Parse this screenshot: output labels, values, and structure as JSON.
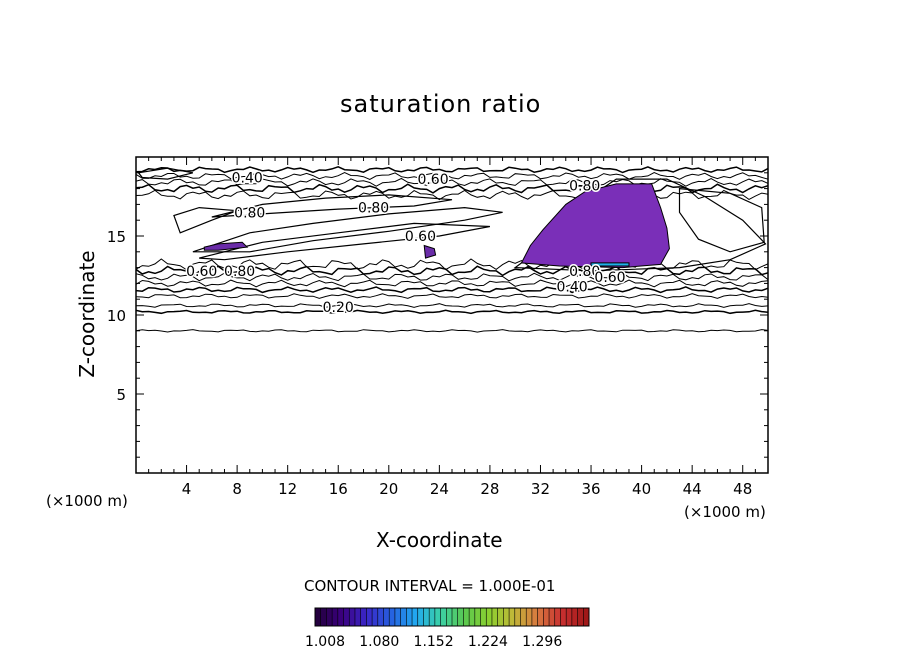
{
  "chart_data": {
    "type": "contour",
    "title": "saturation ratio",
    "xlabel": "X-coordinate",
    "ylabel": "Z-coordinate",
    "x_unit": "(×1000 m)",
    "y_unit": "(×1000 m)",
    "xlim": [
      0,
      50
    ],
    "ylim": [
      0,
      20
    ],
    "x_ticks": [
      4,
      8,
      12,
      16,
      20,
      24,
      28,
      32,
      36,
      40,
      44,
      48
    ],
    "y_ticks": [
      5,
      10,
      15
    ],
    "contour_interval_label": "CONTOUR INTERVAL = 1.000E-01",
    "contour_labels": [
      {
        "text": "0.40",
        "x": 8.8,
        "z": 18.7
      },
      {
        "text": "0.60",
        "x": 23.5,
        "z": 18.6
      },
      {
        "text": "0.80",
        "x": 35.5,
        "z": 18.2
      },
      {
        "text": "0.80",
        "x": 9.0,
        "z": 16.5
      },
      {
        "text": "0.80",
        "x": 18.8,
        "z": 16.8
      },
      {
        "text": "0.60",
        "x": 22.5,
        "z": 15.0
      },
      {
        "text": "0.60",
        "x": 5.2,
        "z": 12.8
      },
      {
        "text": "0.80",
        "x": 8.2,
        "z": 12.8
      },
      {
        "text": "0.80",
        "x": 35.5,
        "z": 12.8
      },
      {
        "text": "0.60",
        "x": 37.5,
        "z": 12.4
      },
      {
        "text": "0.40",
        "x": 34.5,
        "z": 11.8
      },
      {
        "text": "0.20",
        "x": 16.0,
        "z": 10.5
      }
    ],
    "filled_regions": [
      {
        "name": "supersaturation-main",
        "color": "#7a2fb8",
        "polygon": [
          [
            30.5,
            13.3
          ],
          [
            31.2,
            14.4
          ],
          [
            32.2,
            15.4
          ],
          [
            34.0,
            17.0
          ],
          [
            35.5,
            17.8
          ],
          [
            38.0,
            18.3
          ],
          [
            40.8,
            18.3
          ],
          [
            41.5,
            16.8
          ],
          [
            42.0,
            15.5
          ],
          [
            42.2,
            14.2
          ],
          [
            41.5,
            13.2
          ],
          [
            38.5,
            13.0
          ],
          [
            33.5,
            13.1
          ]
        ]
      },
      {
        "name": "supersaturation-left",
        "color": "#6a2ca8",
        "polygon": [
          [
            5.4,
            14.3
          ],
          [
            6.5,
            14.5
          ],
          [
            8.4,
            14.6
          ],
          [
            8.8,
            14.3
          ],
          [
            6.5,
            14.1
          ],
          [
            5.4,
            14.1
          ]
        ]
      },
      {
        "name": "supersaturation-small",
        "color": "#6a2ca8",
        "polygon": [
          [
            22.8,
            14.4
          ],
          [
            23.6,
            14.2
          ],
          [
            23.7,
            13.8
          ],
          [
            22.9,
            13.6
          ]
        ]
      },
      {
        "name": "supersaturation-cyan",
        "color": "#1fb0e8",
        "polygon": [
          [
            36.0,
            13.1
          ],
          [
            39.0,
            13.1
          ],
          [
            39.0,
            13.3
          ],
          [
            36.0,
            13.3
          ]
        ]
      }
    ],
    "colorbar": {
      "ticks": [
        "1.008",
        "1.080",
        "1.152",
        "1.224",
        "1.296"
      ],
      "colors": [
        "#24003f",
        "#3b0080",
        "#3a27c8",
        "#2660e0",
        "#22a8f0",
        "#3ad0a8",
        "#5ac850",
        "#8ad030",
        "#c0b838",
        "#d87840",
        "#c83030",
        "#a01818"
      ]
    }
  }
}
